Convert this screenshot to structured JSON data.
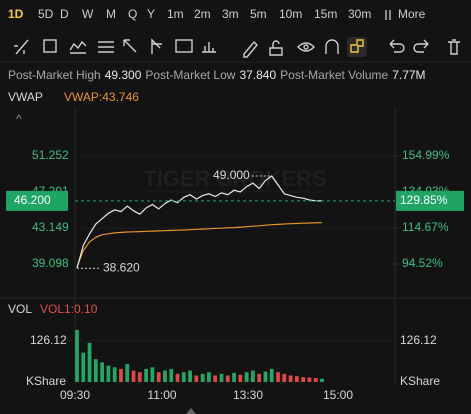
{
  "tabs": [
    "1D",
    "5D",
    "D",
    "W",
    "M",
    "Q",
    "Y",
    "1m",
    "2m",
    "3m",
    "5m",
    "10m",
    "15m",
    "30m",
    "More"
  ],
  "selected_tab": 0,
  "info": [
    {
      "label": "Post-Market High",
      "value": "49.300"
    },
    {
      "label": "Post-Market Low",
      "value": "37.840"
    },
    {
      "label": "Post-Market Volume",
      "value": "7.77M"
    }
  ],
  "price_pane": {
    "indicator": "VWAP",
    "indicator_value": "VWAP:43.746",
    "watermark": "TIGER BROKERS",
    "ylim": [
      35.61,
      56.43
    ],
    "yticks": [
      51.252,
      47.201,
      43.149,
      39.098
    ],
    "y2lim": [
      77.16,
      180.75
    ],
    "y2ticks": [
      {
        "value": 154.99,
        "label": "154.99%"
      },
      {
        "value": 134.93,
        "label": "134.93%"
      },
      {
        "value": 114.67,
        "label": "114.67%"
      },
      {
        "value": 94.52,
        "label": "94.52%"
      }
    ],
    "current": {
      "value": 46.2,
      "label": "46.200"
    },
    "current_pct": {
      "value": 129.85,
      "label": "129.85%"
    },
    "high": {
      "value": 49,
      "label": "49.000",
      "index": 31
    },
    "low": {
      "value": 38.62,
      "label": "38.620",
      "index": 0
    },
    "price": [
      38.62,
      41.2,
      42.5,
      43.6,
      44.2,
      44.8,
      45.2,
      45.0,
      45.6,
      45.1,
      44.7,
      45.4,
      45.8,
      45.3,
      45.9,
      46.3,
      46.0,
      46.6,
      46.9,
      46.4,
      46.8,
      47.0,
      46.7,
      47.1,
      46.9,
      47.4,
      47.2,
      47.8,
      48.2,
      47.6,
      48.5,
      49.0,
      48.0,
      47.0,
      46.8,
      46.6,
      46.5,
      46.3,
      46.2,
      46.2
    ],
    "price_color": "#e8e8e8",
    "vwap": [
      38.8,
      40.6,
      41.6,
      42.1,
      42.4,
      42.5,
      42.6,
      42.65,
      42.7,
      42.72,
      42.75,
      42.78,
      42.8,
      42.82,
      42.85,
      42.88,
      42.9,
      42.93,
      42.96,
      43.0,
      43.03,
      43.06,
      43.1,
      43.13,
      43.17,
      43.2,
      43.25,
      43.3,
      43.35,
      43.4,
      43.46,
      43.52,
      43.56,
      43.6,
      43.63,
      43.66,
      43.69,
      43.71,
      43.73,
      43.746
    ],
    "vwap_color": "#e8952a"
  },
  "volume_pane": {
    "indicator": "VOL",
    "indicator_value": "VOL1:0.10",
    "ylim": [
      0,
      190
    ],
    "yticks": [
      126.12
    ],
    "unit": "KShare",
    "values": [
      160,
      90,
      120,
      70,
      60,
      50,
      45,
      40,
      55,
      35,
      30,
      40,
      45,
      30,
      35,
      40,
      25,
      30,
      35,
      20,
      25,
      30,
      20,
      25,
      20,
      28,
      22,
      30,
      35,
      25,
      32,
      40,
      30,
      25,
      20,
      18,
      15,
      14,
      12,
      10
    ],
    "up_color": "#21a867",
    "down_color": "#e04848"
  },
  "time_labels": [
    "09:30",
    "11:00",
    "13:30",
    "15:00"
  ]
}
